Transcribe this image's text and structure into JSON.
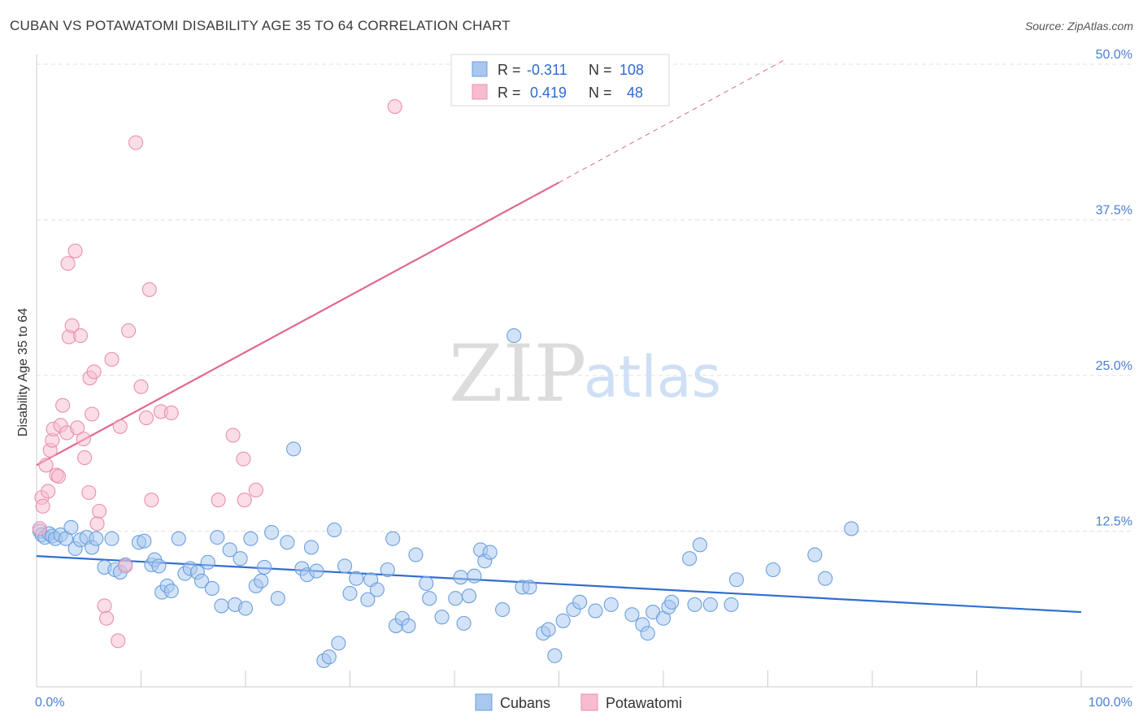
{
  "header": {
    "title": "CUBAN VS POTAWATOMI DISABILITY AGE 35 TO 64 CORRELATION CHART",
    "source": "Source: ZipAtlas.com"
  },
  "legend": {
    "cubans": {
      "r_label": "R =",
      "r_value": "-0.311",
      "n_label": "N =",
      "n_value": "108"
    },
    "potawatomi": {
      "r_label": "R =",
      "r_value": "0.419",
      "n_label": "N =",
      "n_value": "48"
    }
  },
  "watermark": {
    "zip": "ZIP",
    "atlas": "atlas"
  },
  "colors": {
    "cubans_fill": "#a8c8f0",
    "cubans_stroke": "#6a9fe0",
    "cubans_line": "#2f6fd0",
    "potawatomi_fill": "#f8bcd0",
    "potawatomi_stroke": "#e890ae",
    "potawatomi_line": "#e06890"
  },
  "chart_data": {
    "type": "scatter",
    "title": "CUBAN VS POTAWATOMI DISABILITY AGE 35 TO 64 CORRELATION CHART",
    "xlabel": "",
    "ylabel": "Disability Age 35 to 64",
    "xlim": [
      0,
      100
    ],
    "ylim": [
      0,
      50
    ],
    "x_tick_labels": [
      "0.0%",
      "100.0%"
    ],
    "y_ticks": [
      12.5,
      25.0,
      37.5,
      50.0
    ],
    "y_tick_labels": [
      "12.5%",
      "25.0%",
      "37.5%",
      "50.0%"
    ],
    "grid": true,
    "legend_position": "top-center",
    "series": [
      {
        "name": "Cubans",
        "points": [
          [
            0.3,
            12.5
          ],
          [
            0.5,
            12.2
          ],
          [
            0.8,
            12.0
          ],
          [
            1.2,
            12.3
          ],
          [
            1.5,
            12.1
          ],
          [
            1.8,
            11.9
          ],
          [
            2.3,
            12.2
          ],
          [
            2.8,
            11.9
          ],
          [
            3.3,
            12.8
          ],
          [
            3.7,
            11.1
          ],
          [
            4.2,
            11.8
          ],
          [
            4.8,
            12.0
          ],
          [
            5.3,
            11.2
          ],
          [
            5.7,
            11.9
          ],
          [
            6.5,
            9.6
          ],
          [
            7.2,
            11.9
          ],
          [
            7.5,
            9.4
          ],
          [
            8.0,
            9.2
          ],
          [
            8.5,
            9.8
          ],
          [
            9.8,
            11.6
          ],
          [
            10.3,
            11.7
          ],
          [
            11.0,
            9.8
          ],
          [
            11.3,
            10.2
          ],
          [
            11.7,
            9.7
          ],
          [
            12.0,
            7.6
          ],
          [
            12.5,
            8.1
          ],
          [
            12.9,
            7.7
          ],
          [
            13.6,
            11.9
          ],
          [
            14.2,
            9.1
          ],
          [
            14.7,
            9.5
          ],
          [
            15.4,
            9.2
          ],
          [
            15.8,
            8.5
          ],
          [
            16.4,
            10.0
          ],
          [
            16.8,
            7.9
          ],
          [
            17.3,
            12.0
          ],
          [
            17.7,
            6.5
          ],
          [
            18.5,
            11.0
          ],
          [
            19.0,
            6.6
          ],
          [
            19.5,
            10.3
          ],
          [
            20.0,
            6.3
          ],
          [
            20.5,
            11.9
          ],
          [
            21.0,
            8.1
          ],
          [
            21.5,
            8.5
          ],
          [
            21.8,
            9.6
          ],
          [
            22.5,
            12.4
          ],
          [
            23.1,
            7.1
          ],
          [
            24.0,
            11.6
          ],
          [
            24.6,
            19.1
          ],
          [
            25.4,
            9.5
          ],
          [
            25.9,
            9.0
          ],
          [
            26.3,
            11.2
          ],
          [
            26.8,
            9.3
          ],
          [
            27.5,
            2.1
          ],
          [
            28.0,
            2.4
          ],
          [
            28.5,
            12.6
          ],
          [
            28.9,
            3.5
          ],
          [
            29.5,
            9.7
          ],
          [
            30.0,
            7.5
          ],
          [
            30.6,
            8.7
          ],
          [
            31.7,
            7.0
          ],
          [
            32.0,
            8.6
          ],
          [
            32.6,
            7.8
          ],
          [
            33.6,
            9.4
          ],
          [
            34.1,
            11.9
          ],
          [
            34.4,
            4.9
          ],
          [
            35.0,
            5.5
          ],
          [
            35.6,
            4.9
          ],
          [
            36.3,
            10.6
          ],
          [
            37.3,
            8.3
          ],
          [
            37.6,
            7.1
          ],
          [
            38.8,
            5.6
          ],
          [
            40.1,
            7.1
          ],
          [
            40.6,
            8.8
          ],
          [
            40.9,
            5.1
          ],
          [
            41.4,
            7.3
          ],
          [
            41.9,
            8.9
          ],
          [
            42.5,
            11.0
          ],
          [
            42.9,
            10.1
          ],
          [
            43.4,
            10.8
          ],
          [
            44.6,
            6.2
          ],
          [
            45.7,
            28.2
          ],
          [
            46.5,
            8.0
          ],
          [
            47.2,
            8.0
          ],
          [
            48.5,
            4.3
          ],
          [
            49.0,
            4.6
          ],
          [
            49.6,
            2.5
          ],
          [
            50.4,
            5.3
          ],
          [
            51.4,
            6.2
          ],
          [
            52.0,
            6.8
          ],
          [
            53.5,
            6.1
          ],
          [
            55.0,
            6.6
          ],
          [
            57.0,
            5.8
          ],
          [
            58.0,
            5.0
          ],
          [
            58.5,
            4.3
          ],
          [
            59.0,
            6.0
          ],
          [
            60.0,
            5.5
          ],
          [
            60.5,
            6.4
          ],
          [
            60.8,
            6.8
          ],
          [
            62.5,
            10.3
          ],
          [
            63.0,
            6.6
          ],
          [
            63.5,
            11.4
          ],
          [
            64.5,
            6.6
          ],
          [
            66.5,
            6.6
          ],
          [
            67.0,
            8.6
          ],
          [
            70.5,
            9.4
          ],
          [
            74.5,
            10.6
          ],
          [
            75.5,
            8.7
          ],
          [
            78.0,
            12.7
          ]
        ]
      },
      {
        "name": "Potawatomi",
        "points": [
          [
            0.3,
            12.7
          ],
          [
            0.5,
            15.2
          ],
          [
            0.6,
            14.5
          ],
          [
            0.9,
            17.8
          ],
          [
            1.1,
            15.7
          ],
          [
            1.3,
            19.0
          ],
          [
            1.5,
            19.8
          ],
          [
            1.6,
            20.7
          ],
          [
            1.9,
            17.0
          ],
          [
            2.1,
            16.9
          ],
          [
            2.3,
            21.0
          ],
          [
            2.5,
            22.6
          ],
          [
            2.9,
            20.4
          ],
          [
            3.0,
            34.0
          ],
          [
            3.1,
            28.1
          ],
          [
            3.4,
            29.0
          ],
          [
            3.7,
            35.0
          ],
          [
            3.9,
            20.8
          ],
          [
            4.2,
            28.2
          ],
          [
            4.5,
            19.9
          ],
          [
            4.6,
            18.4
          ],
          [
            5.0,
            15.6
          ],
          [
            5.1,
            24.8
          ],
          [
            5.3,
            21.9
          ],
          [
            5.5,
            25.3
          ],
          [
            5.8,
            13.1
          ],
          [
            6.0,
            14.1
          ],
          [
            6.5,
            6.5
          ],
          [
            6.7,
            5.5
          ],
          [
            7.2,
            26.3
          ],
          [
            7.8,
            3.7
          ],
          [
            8.0,
            20.9
          ],
          [
            8.5,
            9.7
          ],
          [
            8.8,
            28.6
          ],
          [
            9.5,
            43.7
          ],
          [
            10.0,
            24.1
          ],
          [
            10.5,
            21.6
          ],
          [
            10.8,
            31.9
          ],
          [
            11.0,
            15.0
          ],
          [
            11.9,
            22.1
          ],
          [
            12.9,
            22.0
          ],
          [
            17.4,
            15.0
          ],
          [
            18.8,
            20.2
          ],
          [
            19.8,
            18.3
          ],
          [
            19.9,
            15.0
          ],
          [
            21.0,
            15.8
          ],
          [
            34.3,
            46.6
          ],
          [
            42.6,
            48.0
          ]
        ]
      }
    ],
    "trend_lines": [
      {
        "series": "Cubans",
        "x": [
          0,
          100
        ],
        "y": [
          10.5,
          6.0
        ],
        "style": "solid"
      },
      {
        "series": "Potawatomi",
        "x": [
          0,
          50
        ],
        "y": [
          17.8,
          40.5
        ],
        "style": "solid"
      },
      {
        "series": "Potawatomi",
        "x": [
          50,
          71.5
        ],
        "y": [
          40.5,
          50.3
        ],
        "style": "dashed"
      }
    ]
  }
}
